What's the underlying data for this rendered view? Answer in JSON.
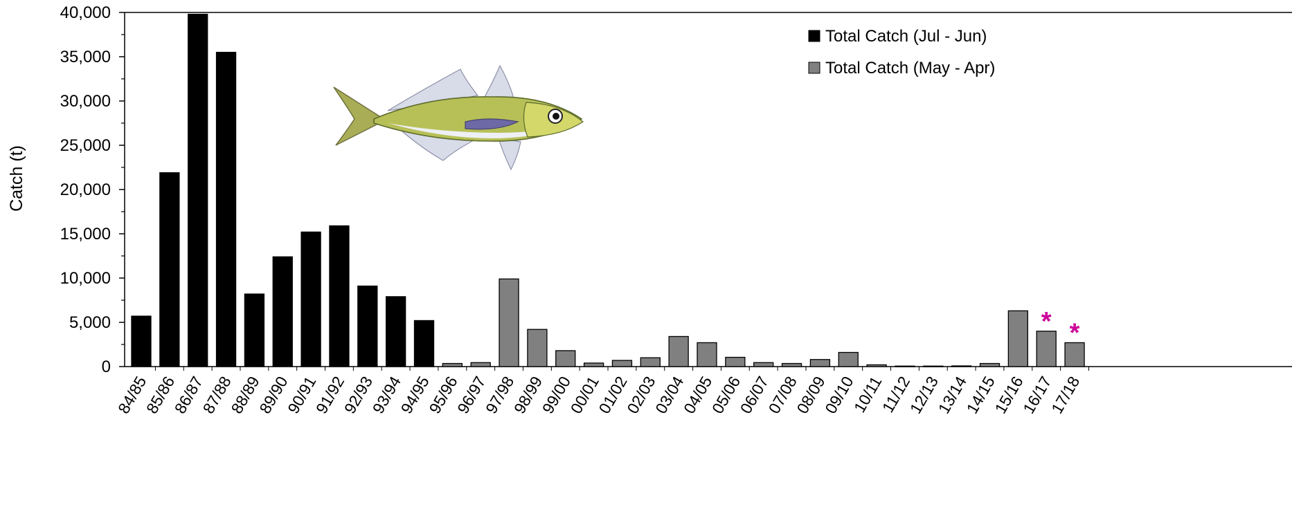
{
  "chart_data": {
    "type": "bar",
    "ylabel": "Catch (t)",
    "xlabel": "",
    "ylim": [
      0,
      40000
    ],
    "yticks": [
      0,
      5000,
      10000,
      15000,
      20000,
      25000,
      30000,
      35000,
      40000
    ],
    "ytick_labels": [
      "0",
      "5,000",
      "10,000",
      "15,000",
      "20,000",
      "25,000",
      "30,000",
      "35,000",
      "40,000"
    ],
    "grid": false,
    "legend_position": "top-right",
    "colors": {
      "jul_jun": "#000000",
      "may_apr": "#808080",
      "asterisk": "#cc0099"
    },
    "categories": [
      "84/85",
      "85/86",
      "86/87",
      "87/88",
      "88/89",
      "89/90",
      "90/91",
      "91/92",
      "92/93",
      "93/94",
      "94/95",
      "95/96",
      "96/97",
      "97/98",
      "98/99",
      "99/00",
      "00/01",
      "01/02",
      "02/03",
      "03/04",
      "04/05",
      "05/06",
      "06/07",
      "07/08",
      "08/09",
      "09/10",
      "10/11",
      "11/12",
      "12/13",
      "13/14",
      "14/15",
      "15/16",
      "16/17",
      "17/18"
    ],
    "series": [
      {
        "name": "Total Catch (Jul - Jun)",
        "color": "#000000",
        "values": [
          5700,
          21900,
          39800,
          35500,
          8200,
          12400,
          15200,
          15900,
          9100,
          7900,
          5200,
          null,
          null,
          null,
          null,
          null,
          null,
          null,
          null,
          null,
          null,
          null,
          null,
          null,
          null,
          null,
          null,
          null,
          null,
          null,
          null,
          null,
          null,
          null
        ]
      },
      {
        "name": "Total Catch (May - Apr)",
        "color": "#808080",
        "values": [
          null,
          null,
          null,
          null,
          null,
          null,
          null,
          null,
          null,
          null,
          null,
          350,
          450,
          9900,
          4200,
          1800,
          400,
          700,
          1000,
          3400,
          2700,
          1050,
          450,
          350,
          800,
          1600,
          200,
          60,
          60,
          80,
          350,
          6300,
          4000,
          2700
        ]
      }
    ],
    "annotations": [
      {
        "category": "16/17",
        "text": "*"
      },
      {
        "category": "17/18",
        "text": "*"
      }
    ]
  }
}
